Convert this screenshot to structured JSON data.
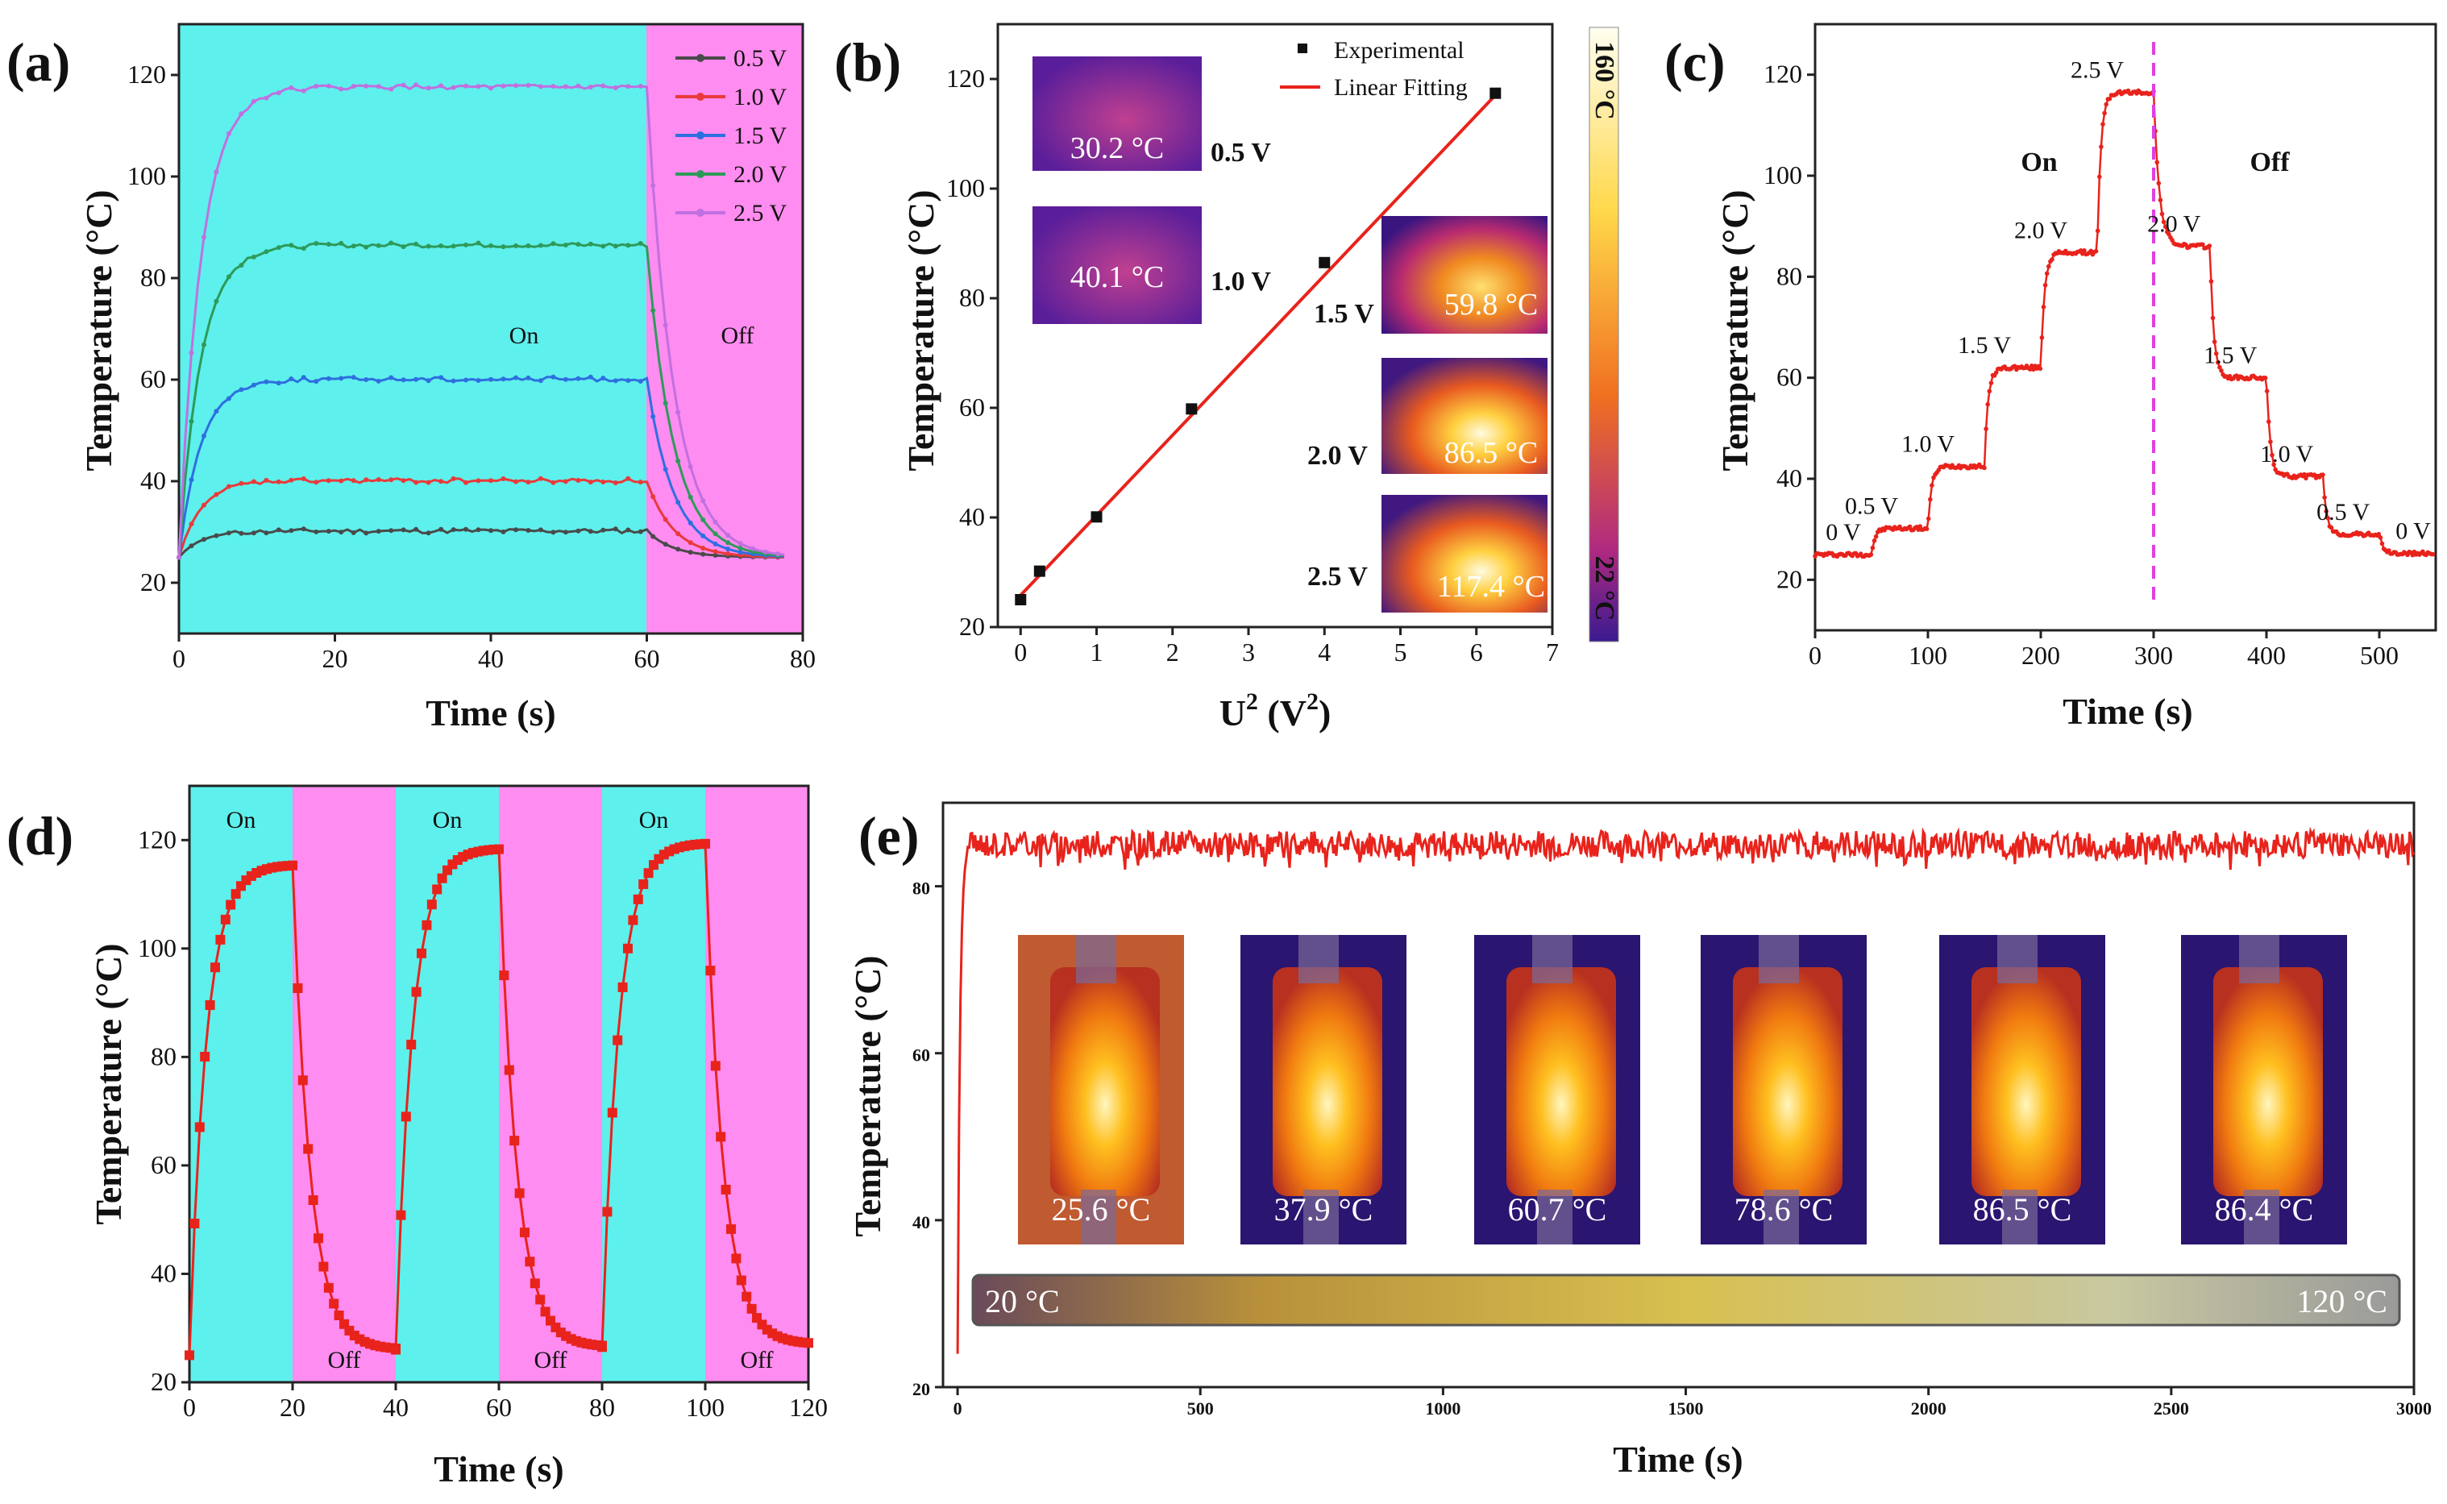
{
  "colors": {
    "on_bg": "#5ef0ec",
    "off_bg": "#ff8cf0",
    "red": "#e8231c",
    "s05": "#4a4a4a",
    "s10": "#e83a3a",
    "s15": "#2e6fe0",
    "s20": "#2e9a5a",
    "s25": "#c070e0",
    "magenta_line": "#e040e0"
  },
  "chart_data": [
    {
      "panel": "(a)",
      "type": "line",
      "xlabel": "Time (s)",
      "ylabel": "Temperature (°C)",
      "xlim": [
        0,
        80
      ],
      "ylim": [
        10,
        130
      ],
      "xticks": [
        "0",
        "20",
        "40",
        "60",
        "80"
      ],
      "yticks": [
        "20",
        "40",
        "60",
        "80",
        "100",
        "120"
      ],
      "regions": [
        {
          "label": "On",
          "x_start": 0,
          "x_end": 60
        },
        {
          "label": "Off",
          "x_start": 60,
          "x_end": 80
        }
      ],
      "legend": [
        "0.5 V",
        "1.0 V",
        "1.5 V",
        "2.0 V",
        "2.5 V"
      ],
      "series": [
        {
          "name": "0.5 V",
          "base": 25,
          "plateau": 30.2
        },
        {
          "name": "1.0 V",
          "base": 25,
          "plateau": 40.1
        },
        {
          "name": "1.5 V",
          "base": 25,
          "plateau": 60.1
        },
        {
          "name": "2.0 V",
          "base": 25,
          "plateau": 86.5
        },
        {
          "name": "2.5 V",
          "base": 25,
          "plateau": 117.6
        }
      ]
    },
    {
      "panel": "(b)",
      "type": "scatter",
      "xlabel": "U",
      "xlabel_sup": "2",
      "xlabel_tail": " (V",
      "xlabel_sup2": "2",
      "xlabel_end": ")",
      "ylabel": "Temperature (°C)",
      "xlim": [
        -0.3,
        7
      ],
      "ylim": [
        20,
        130
      ],
      "xticks": [
        "0",
        "1",
        "2",
        "3",
        "4",
        "5",
        "6",
        "7"
      ],
      "yticks": [
        "20",
        "40",
        "60",
        "80",
        "100",
        "120"
      ],
      "legend": [
        "Experimental",
        "Linear Fitting"
      ],
      "x": [
        0,
        0.25,
        1,
        2.25,
        4,
        6.25
      ],
      "y": [
        25,
        30.2,
        40.1,
        59.8,
        86.5,
        117.4
      ],
      "fit": {
        "slope": 14.6,
        "intercept": 25.8
      },
      "colorbar": {
        "max": "160 °C",
        "min": "22 °C"
      },
      "thermal_insets": [
        {
          "voltage": "0.5 V",
          "temp": "30.2 °C"
        },
        {
          "voltage": "1.0 V",
          "temp": "40.1 °C"
        },
        {
          "voltage": "1.5 V",
          "temp": "59.8 °C"
        },
        {
          "voltage": "2.0 V",
          "temp": "86.5 °C"
        },
        {
          "voltage": "2.5 V",
          "temp": "117.4 °C"
        }
      ]
    },
    {
      "panel": "(c)",
      "type": "line",
      "xlabel": "Time (s)",
      "ylabel": "Temperature (°C)",
      "xlim": [
        0,
        550
      ],
      "ylim": [
        10,
        130
      ],
      "xticks": [
        "0",
        "100",
        "200",
        "300",
        "400",
        "500"
      ],
      "yticks": [
        "20",
        "40",
        "60",
        "80",
        "100",
        "120"
      ],
      "on_label": "On",
      "off_label": "Off",
      "switch_time": 300,
      "steps": [
        {
          "label": "0 V",
          "t_start": 0,
          "t_end": 50,
          "temp": 25
        },
        {
          "label": "0.5 V",
          "t_start": 50,
          "t_end": 100,
          "temp": 30.2
        },
        {
          "label": "1.0 V",
          "t_start": 100,
          "t_end": 150,
          "temp": 42.5
        },
        {
          "label": "1.5 V",
          "t_start": 150,
          "t_end": 200,
          "temp": 62
        },
        {
          "label": "2.0 V",
          "t_start": 200,
          "t_end": 250,
          "temp": 84.8
        },
        {
          "label": "2.5 V",
          "t_start": 250,
          "t_end": 300,
          "temp": 116.5
        },
        {
          "label": "2.0 V",
          "t_start": 300,
          "t_end": 350,
          "temp": 86
        },
        {
          "label": "1.5 V",
          "t_start": 350,
          "t_end": 400,
          "temp": 60
        },
        {
          "label": "1.0 V",
          "t_start": 400,
          "t_end": 450,
          "temp": 40.5
        },
        {
          "label": "0.5 V",
          "t_start": 450,
          "t_end": 500,
          "temp": 29
        },
        {
          "label": "0 V",
          "t_start": 500,
          "t_end": 550,
          "temp": 25.2
        }
      ]
    },
    {
      "panel": "(d)",
      "type": "line",
      "xlabel": "Time (s)",
      "ylabel": "Temperature (°C)",
      "xlim": [
        0,
        120
      ],
      "ylim": [
        20,
        130
      ],
      "xticks": [
        "0",
        "20",
        "40",
        "60",
        "80",
        "100",
        "120"
      ],
      "yticks": [
        "20",
        "40",
        "60",
        "80",
        "100",
        "120"
      ],
      "on_label": "On",
      "off_label": "Off",
      "cycles": [
        {
          "on_start": 0,
          "on_end": 20,
          "off_end": 40,
          "start_temp": 25,
          "peak": 115.5,
          "end_temp": 26
        },
        {
          "on_start": 40,
          "on_end": 60,
          "off_end": 80,
          "start_temp": 26,
          "peak": 118.5,
          "end_temp": 26.5
        },
        {
          "on_start": 80,
          "on_end": 100,
          "off_end": 120,
          "start_temp": 26.5,
          "peak": 119.5,
          "end_temp": 27
        }
      ]
    },
    {
      "panel": "(e)",
      "type": "line",
      "xlabel": "Time (s)",
      "ylabel": "Temperature (°C)",
      "xlim": [
        -30,
        3000
      ],
      "ylim": [
        20,
        90
      ],
      "xticks": [
        "0",
        "500",
        "1000",
        "1500",
        "2000",
        "2500",
        "3000"
      ],
      "yticks": [
        "20",
        "40",
        "60",
        "80"
      ],
      "start_temp": 24,
      "steady_temp": 85,
      "thermal_images": [
        "25.6 °C",
        "37.9 °C",
        "60.7 °C",
        "78.6 °C",
        "86.5 °C",
        "86.4 °C"
      ],
      "colorbar": {
        "min": "20 °C",
        "max": "120 °C"
      }
    }
  ]
}
